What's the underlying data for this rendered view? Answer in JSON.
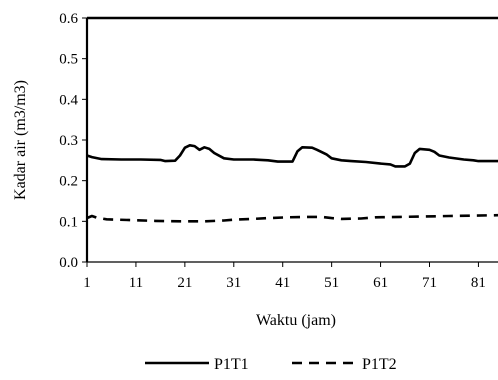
{
  "chart_data": {
    "type": "line",
    "xlabel": "Waktu (jam)",
    "ylabel": "Kadar air (m3/m3)",
    "xlim": [
      1,
      85
    ],
    "ylim": [
      0.0,
      0.6
    ],
    "xticks": [
      1,
      11,
      21,
      31,
      41,
      51,
      61,
      71,
      81
    ],
    "yticks": [
      0.0,
      0.1,
      0.2,
      0.3,
      0.4,
      0.5,
      0.6
    ],
    "ytick_labels": [
      "0.0",
      "0.1",
      "0.2",
      "0.3",
      "0.4",
      "0.5",
      "0.6"
    ],
    "grid": false,
    "legend_position": "bottom",
    "series": [
      {
        "name": "P1T1",
        "style": "solid",
        "color": "#000000",
        "points": [
          [
            1,
            0.262
          ],
          [
            2,
            0.258
          ],
          [
            4,
            0.253
          ],
          [
            8,
            0.252
          ],
          [
            12,
            0.252
          ],
          [
            16,
            0.251
          ],
          [
            17,
            0.248
          ],
          [
            19,
            0.249
          ],
          [
            20,
            0.262
          ],
          [
            21,
            0.281
          ],
          [
            22,
            0.287
          ],
          [
            23,
            0.285
          ],
          [
            24,
            0.276
          ],
          [
            25,
            0.282
          ],
          [
            26,
            0.278
          ],
          [
            27,
            0.268
          ],
          [
            29,
            0.255
          ],
          [
            31,
            0.252
          ],
          [
            35,
            0.252
          ],
          [
            38,
            0.25
          ],
          [
            40,
            0.247
          ],
          [
            43,
            0.247
          ],
          [
            44,
            0.272
          ],
          [
            45,
            0.282
          ],
          [
            47,
            0.281
          ],
          [
            48,
            0.276
          ],
          [
            50,
            0.264
          ],
          [
            51,
            0.255
          ],
          [
            53,
            0.25
          ],
          [
            55,
            0.248
          ],
          [
            58,
            0.246
          ],
          [
            61,
            0.242
          ],
          [
            63,
            0.24
          ],
          [
            64,
            0.235
          ],
          [
            66,
            0.235
          ],
          [
            67,
            0.242
          ],
          [
            68,
            0.268
          ],
          [
            69,
            0.278
          ],
          [
            71,
            0.276
          ],
          [
            72,
            0.271
          ],
          [
            73,
            0.262
          ],
          [
            75,
            0.257
          ],
          [
            78,
            0.252
          ],
          [
            80,
            0.25
          ],
          [
            81,
            0.248
          ],
          [
            83,
            0.248
          ],
          [
            85,
            0.248
          ]
        ]
      },
      {
        "name": "P1T2",
        "style": "dashed",
        "color": "#000000",
        "points": [
          [
            1,
            0.108
          ],
          [
            2,
            0.113
          ],
          [
            3,
            0.109
          ],
          [
            5,
            0.105
          ],
          [
            10,
            0.103
          ],
          [
            15,
            0.101
          ],
          [
            20,
            0.1
          ],
          [
            25,
            0.1
          ],
          [
            29,
            0.102
          ],
          [
            31,
            0.104
          ],
          [
            35,
            0.106
          ],
          [
            38,
            0.108
          ],
          [
            42,
            0.11
          ],
          [
            46,
            0.111
          ],
          [
            49,
            0.111
          ],
          [
            51,
            0.108
          ],
          [
            53,
            0.106
          ],
          [
            57,
            0.107
          ],
          [
            60,
            0.11
          ],
          [
            65,
            0.111
          ],
          [
            70,
            0.112
          ],
          [
            75,
            0.113
          ],
          [
            80,
            0.114
          ],
          [
            85,
            0.115
          ]
        ]
      }
    ]
  }
}
